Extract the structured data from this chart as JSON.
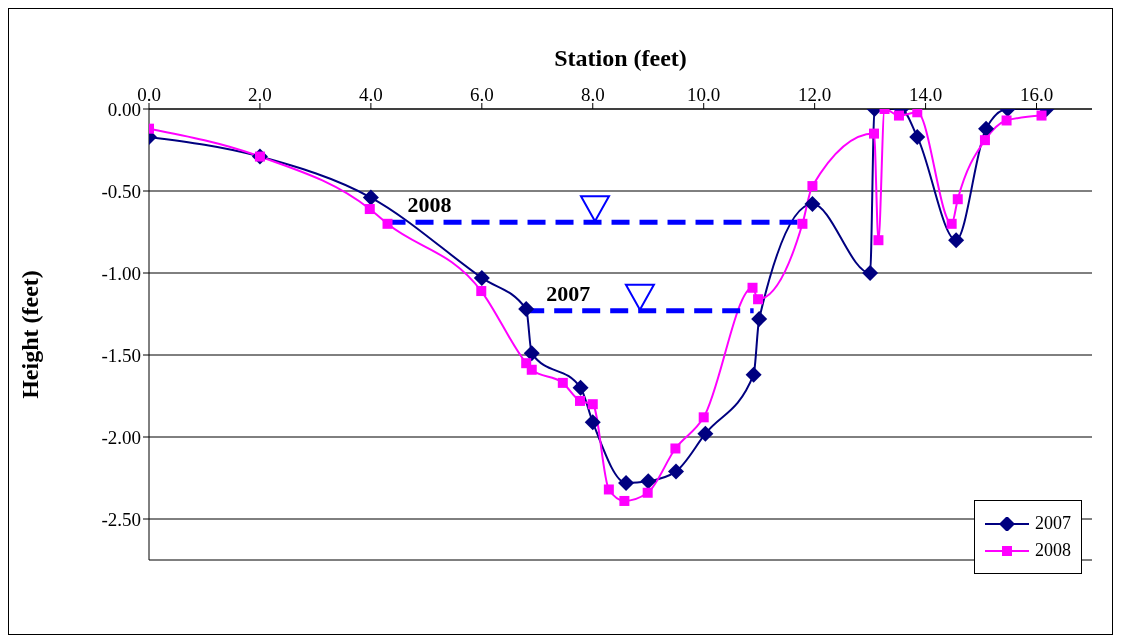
{
  "chart_data": {
    "type": "line",
    "xlabel": "Station (feet)",
    "ylabel": "Height (feet)",
    "xlim": [
      0,
      17
    ],
    "xticks": [
      {
        "value": 0,
        "label": "0.0"
      },
      {
        "value": 2,
        "label": "2.0"
      },
      {
        "value": 4,
        "label": "4.0"
      },
      {
        "value": 6,
        "label": "6.0"
      },
      {
        "value": 8,
        "label": "8.0"
      },
      {
        "value": 10,
        "label": "10.0"
      },
      {
        "value": 12,
        "label": "12.0"
      },
      {
        "value": 14,
        "label": "14.0"
      },
      {
        "value": 16,
        "label": "16.0"
      }
    ],
    "ylim": [
      -2.75,
      0
    ],
    "yticks": [
      {
        "value": 0,
        "label": "0.00"
      },
      {
        "value": -0.5,
        "label": "-0.50"
      },
      {
        "value": -1,
        "label": "-1.00"
      },
      {
        "value": -1.5,
        "label": "-1.50"
      },
      {
        "value": -2,
        "label": "-2.00"
      },
      {
        "value": -2.5,
        "label": "-2.50"
      }
    ],
    "grid": "y",
    "legend": "bottom right",
    "series": [
      {
        "name": "2007",
        "color": "#000080",
        "marker": "diamond",
        "x": [
          0,
          2,
          4,
          6,
          6.8,
          6.9,
          7.78,
          8,
          8.6,
          9,
          9.5,
          10.03,
          10.9,
          11,
          11.96,
          13,
          13.08,
          13.56,
          13.85,
          14.55,
          15.09,
          15.48,
          16.18
        ],
        "values": [
          -0.17,
          -0.29,
          -0.54,
          -1.03,
          -1.22,
          -1.49,
          -1.7,
          -1.91,
          -2.28,
          -2.27,
          -2.21,
          -1.98,
          -1.62,
          -1.28,
          -0.58,
          -1,
          0,
          0,
          -0.17,
          -0.8,
          -0.12,
          0,
          0
        ]
      },
      {
        "name": "2008",
        "color": "#ff00ff",
        "marker": "square",
        "x": [
          0,
          2,
          3.98,
          4.3,
          5.99,
          6.8,
          6.9,
          7.46,
          7.77,
          8,
          8.29,
          8.57,
          8.99,
          9.49,
          10,
          10.88,
          10.98,
          11.78,
          11.96,
          13.07,
          13.15,
          13.26,
          13.52,
          13.85,
          14.47,
          14.58,
          15.07,
          15.46,
          16.09
        ],
        "values": [
          -0.12,
          -0.29,
          -0.61,
          -0.7,
          -1.11,
          -1.55,
          -1.59,
          -1.67,
          -1.78,
          -1.8,
          -2.32,
          -2.39,
          -2.34,
          -2.07,
          -1.88,
          -1.09,
          -1.16,
          -0.7,
          -0.47,
          -0.15,
          -0.8,
          0,
          -0.04,
          -0.02,
          -0.7,
          -0.55,
          -0.19,
          -0.07,
          -0.04
        ]
      },
      {
        "color": "#0000ff",
        "marker": "none",
        "line_style": "dashed",
        "x": [
          4.3,
          11.78
        ],
        "values": [
          -0.69,
          -0.69
        ]
      },
      {
        "color": "#0000ff",
        "marker": "none",
        "line_style": "dashed",
        "x": [
          6.8,
          10.9
        ],
        "values": [
          -1.23,
          -1.23
        ]
      }
    ],
    "annotations": [
      {
        "text": "2008",
        "x": 4.3,
        "y": -0.69
      },
      {
        "text": "2007",
        "x": 6.8,
        "y": -1.23
      }
    ]
  }
}
